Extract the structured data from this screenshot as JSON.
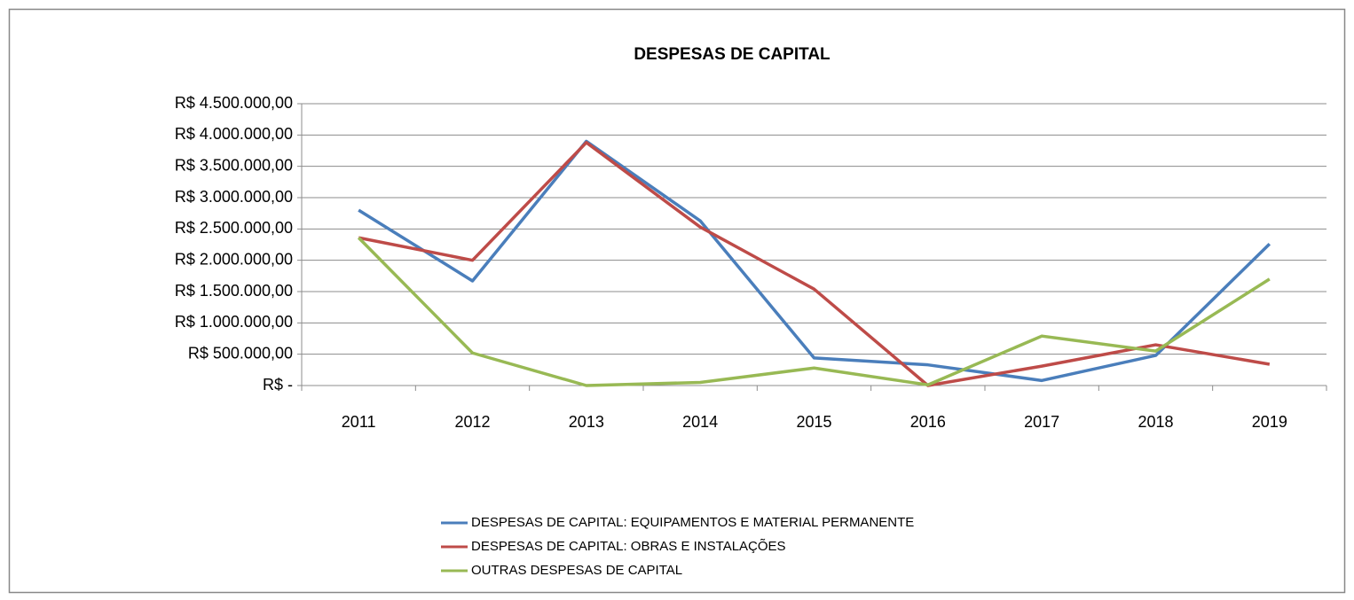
{
  "chart_data": {
    "type": "line",
    "title": "DESPESAS DE CAPITAL",
    "categories": [
      "2011",
      "2012",
      "2013",
      "2014",
      "2015",
      "2016",
      "2017",
      "2018",
      "2019"
    ],
    "series": [
      {
        "name": "DESPESAS DE CAPITAL: EQUIPAMENTOS E MATERIAL PERMANENTE",
        "color": "#4a7ebb",
        "values": [
          2800000,
          1670000,
          3900000,
          2630000,
          440000,
          330000,
          80000,
          480000,
          2260000
        ]
      },
      {
        "name": "DESPESAS DE CAPITAL: OBRAS E INSTALAÇÕES",
        "color": "#be4b48",
        "values": [
          2360000,
          2000000,
          3880000,
          2530000,
          1540000,
          0,
          310000,
          650000,
          340000
        ]
      },
      {
        "name": "OUTRAS DESPESAS DE CAPITAL",
        "color": "#98b954",
        "values": [
          2360000,
          520000,
          0,
          50000,
          280000,
          10000,
          790000,
          550000,
          1700000
        ]
      }
    ],
    "ylim": [
      0,
      4500000
    ],
    "yticks": [
      {
        "value": 0,
        "label": "R$ -"
      },
      {
        "value": 500000,
        "label": "R$ 500.000,00"
      },
      {
        "value": 1000000,
        "label": "R$ 1.000.000,00"
      },
      {
        "value": 1500000,
        "label": "R$ 1.500.000,00"
      },
      {
        "value": 2000000,
        "label": "R$ 2.000.000,00"
      },
      {
        "value": 2500000,
        "label": "R$ 2.500.000,00"
      },
      {
        "value": 3000000,
        "label": "R$ 3.000.000,00"
      },
      {
        "value": 3500000,
        "label": "R$ 3.500.000,00"
      },
      {
        "value": 4000000,
        "label": "R$ 4.000.000,00"
      },
      {
        "value": 4500000,
        "label": "R$ 4.500.000,00"
      }
    ],
    "grid": true,
    "legend": "bottom"
  }
}
